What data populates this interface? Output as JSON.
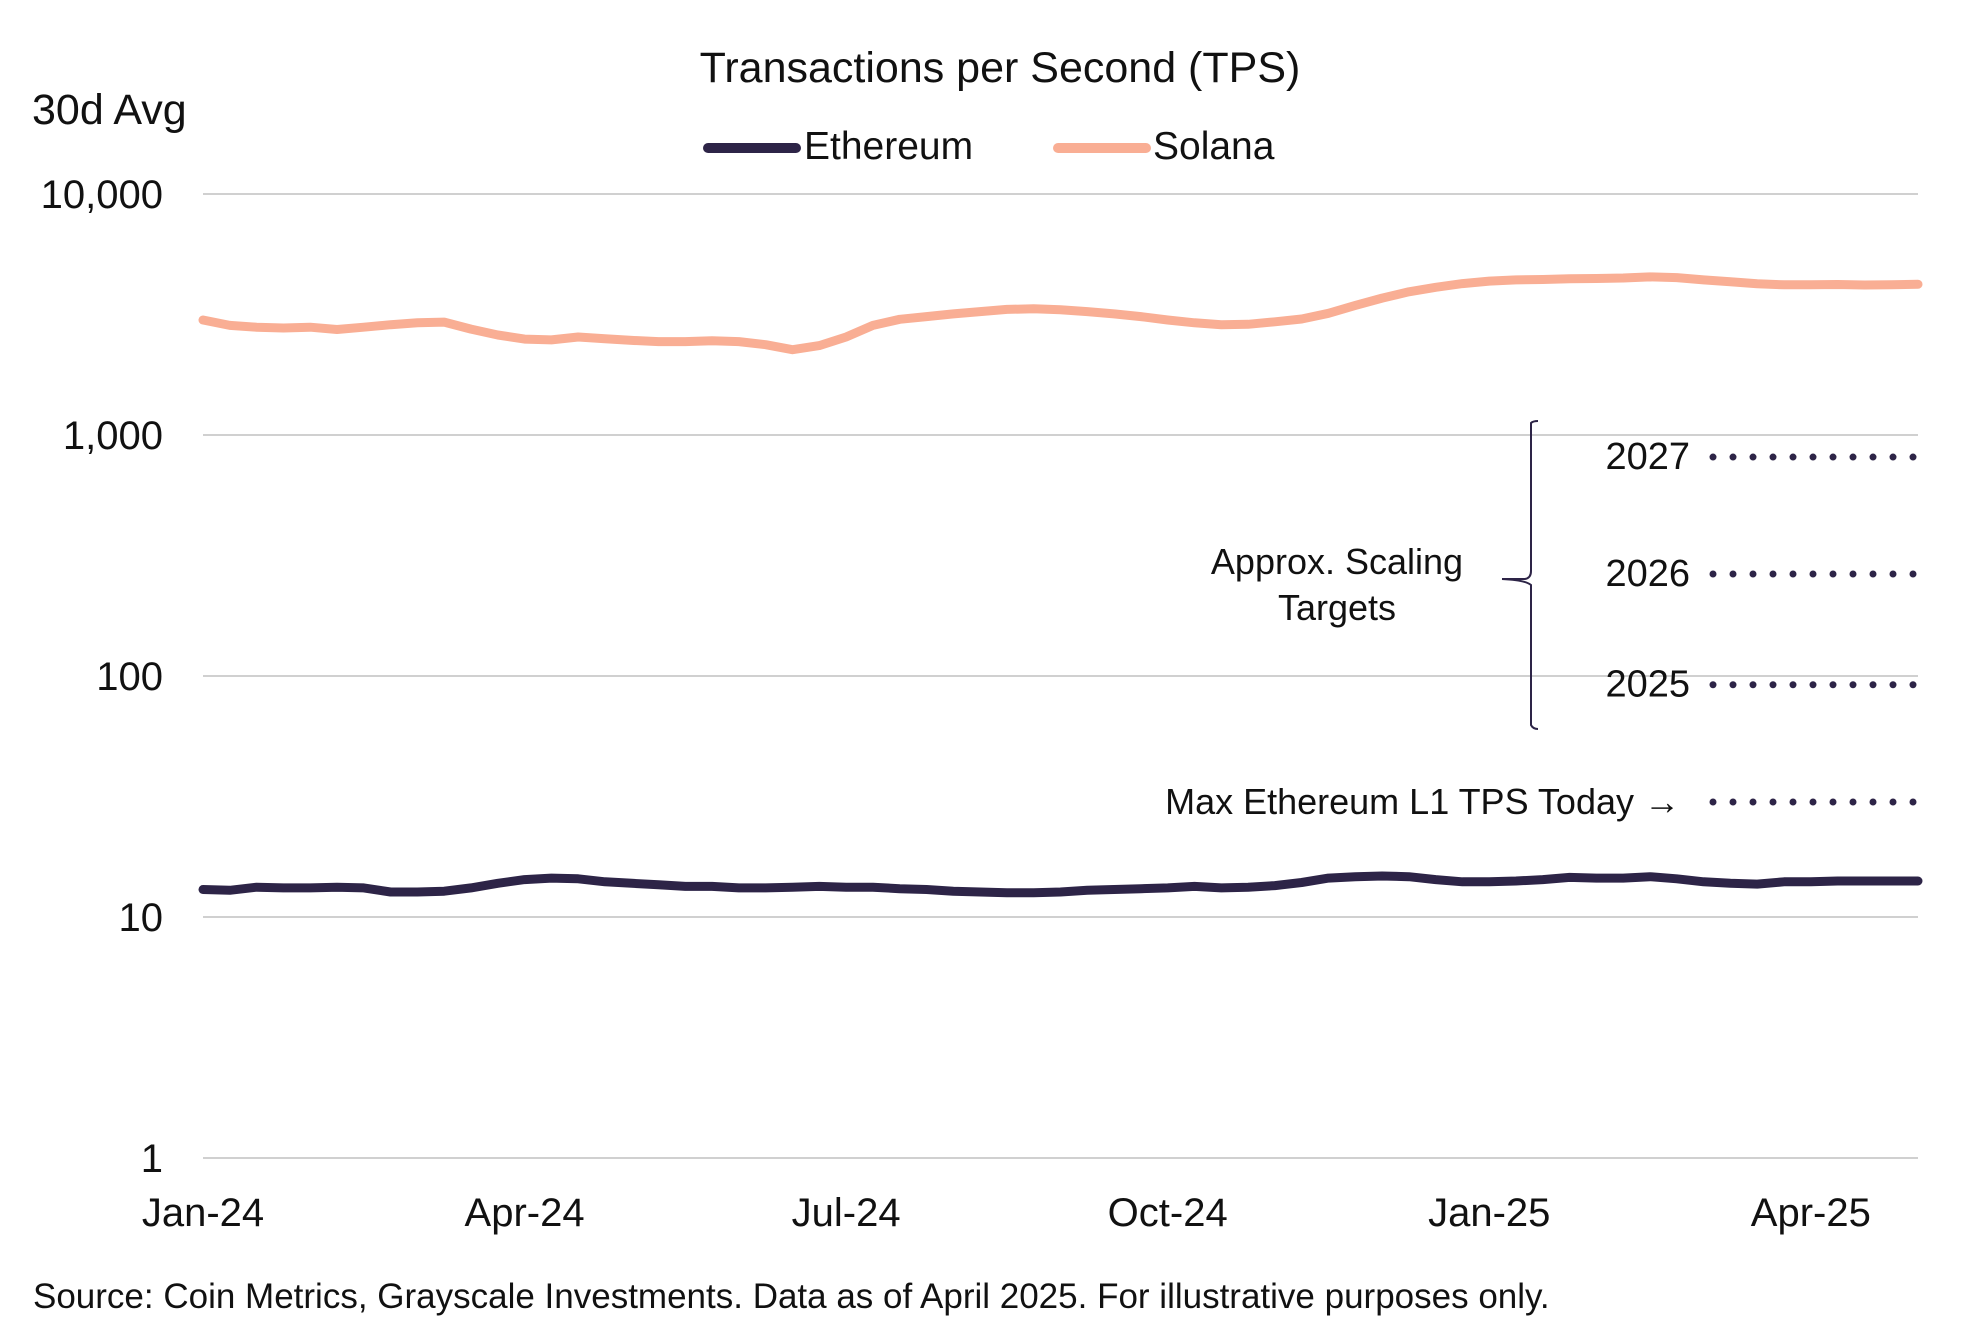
{
  "colors": {
    "ethereum": "#2d2447",
    "solana": "#f9ae94",
    "grid": "#d0d0d0",
    "targets": "#2d2447",
    "text": "#111111"
  },
  "chart_data": {
    "type": "line",
    "title": "Transactions per Second (TPS)",
    "ylabel": "30d Avg",
    "xlabel": "",
    "yscale": "log",
    "ylim": [
      1,
      10000
    ],
    "yticks": [
      {
        "value": 10000,
        "label": "10,000"
      },
      {
        "value": 1000,
        "label": "1,000"
      },
      {
        "value": 100,
        "label": "100"
      },
      {
        "value": 10,
        "label": "10"
      },
      {
        "value": 1,
        "label": "1"
      }
    ],
    "xlim": [
      0,
      16
    ],
    "xticks": [
      {
        "value": 0,
        "label": "Jan-24"
      },
      {
        "value": 3,
        "label": "Apr-24"
      },
      {
        "value": 6,
        "label": "Jul-24"
      },
      {
        "value": 9,
        "label": "Oct-24"
      },
      {
        "value": 12,
        "label": "Jan-25"
      },
      {
        "value": 15,
        "label": "Apr-25"
      }
    ],
    "legend_position": "top-center",
    "series": [
      {
        "name": "Ethereum",
        "color_key": "ethereum",
        "x": [
          0,
          0.25,
          0.5,
          0.75,
          1,
          1.25,
          1.5,
          1.75,
          2,
          2.25,
          2.5,
          2.75,
          3,
          3.25,
          3.5,
          3.75,
          4,
          4.25,
          4.5,
          4.75,
          5,
          5.25,
          5.5,
          5.75,
          6,
          6.25,
          6.5,
          6.75,
          7,
          7.25,
          7.5,
          7.75,
          8,
          8.25,
          8.5,
          8.75,
          9,
          9.25,
          9.5,
          9.75,
          10,
          10.25,
          10.5,
          10.75,
          11,
          11.25,
          11.5,
          11.75,
          12,
          12.25,
          12.5,
          12.75,
          13,
          13.25,
          13.5,
          13.75,
          14,
          14.25,
          14.5,
          14.75,
          15,
          15.25,
          15.5,
          15.75,
          16
        ],
        "values": [
          13.0,
          12.9,
          13.3,
          13.2,
          13.2,
          13.3,
          13.2,
          12.7,
          12.7,
          12.8,
          13.2,
          13.8,
          14.3,
          14.5,
          14.4,
          14.0,
          13.8,
          13.6,
          13.4,
          13.4,
          13.2,
          13.2,
          13.3,
          13.4,
          13.3,
          13.3,
          13.1,
          13.0,
          12.8,
          12.7,
          12.6,
          12.6,
          12.7,
          12.9,
          13.0,
          13.1,
          13.2,
          13.4,
          13.2,
          13.3,
          13.5,
          13.9,
          14.5,
          14.7,
          14.8,
          14.7,
          14.3,
          14.0,
          14.0,
          14.1,
          14.3,
          14.6,
          14.5,
          14.5,
          14.7,
          14.4,
          14.0,
          13.8,
          13.7,
          14.0,
          14.0,
          14.1,
          14.1,
          14.1,
          14.1
        ]
      },
      {
        "name": "Solana",
        "color_key": "solana",
        "x": [
          0,
          0.25,
          0.5,
          0.75,
          1,
          1.25,
          1.5,
          1.75,
          2,
          2.25,
          2.5,
          2.75,
          3,
          3.25,
          3.5,
          3.75,
          4,
          4.25,
          4.5,
          4.75,
          5,
          5.25,
          5.5,
          5.75,
          6,
          6.25,
          6.5,
          6.75,
          7,
          7.25,
          7.5,
          7.75,
          8,
          8.25,
          8.5,
          8.75,
          9,
          9.25,
          9.5,
          9.75,
          10,
          10.25,
          10.5,
          10.75,
          11,
          11.25,
          11.5,
          11.75,
          12,
          12.25,
          12.5,
          12.75,
          13,
          13.25,
          13.5,
          13.75,
          14,
          14.25,
          14.5,
          14.75,
          15,
          15.25,
          15.5,
          15.75,
          16
        ],
        "values": [
          3000,
          2850,
          2800,
          2780,
          2800,
          2740,
          2800,
          2870,
          2920,
          2940,
          2750,
          2600,
          2500,
          2480,
          2550,
          2510,
          2470,
          2440,
          2440,
          2460,
          2440,
          2370,
          2260,
          2350,
          2550,
          2850,
          3020,
          3100,
          3180,
          3250,
          3320,
          3340,
          3310,
          3250,
          3180,
          3100,
          3000,
          2920,
          2870,
          2880,
          2950,
          3030,
          3200,
          3450,
          3700,
          3930,
          4100,
          4250,
          4350,
          4400,
          4420,
          4450,
          4460,
          4480,
          4530,
          4500,
          4400,
          4320,
          4240,
          4200,
          4200,
          4210,
          4190,
          4200,
          4220
        ]
      }
    ],
    "reference_lines": [
      {
        "label": "Max Ethereum L1 TPS Today →",
        "value": 30
      },
      {
        "label": "2025",
        "value": 92
      },
      {
        "label": "2026",
        "value": 265
      },
      {
        "label": "2027",
        "value": 810
      }
    ],
    "bracket_label": [
      "Approx. Scaling",
      "Targets"
    ]
  },
  "footer": {
    "source": "Source: Coin Metrics, Grayscale Investments. Data as of April 2025. For illustrative purposes only."
  }
}
